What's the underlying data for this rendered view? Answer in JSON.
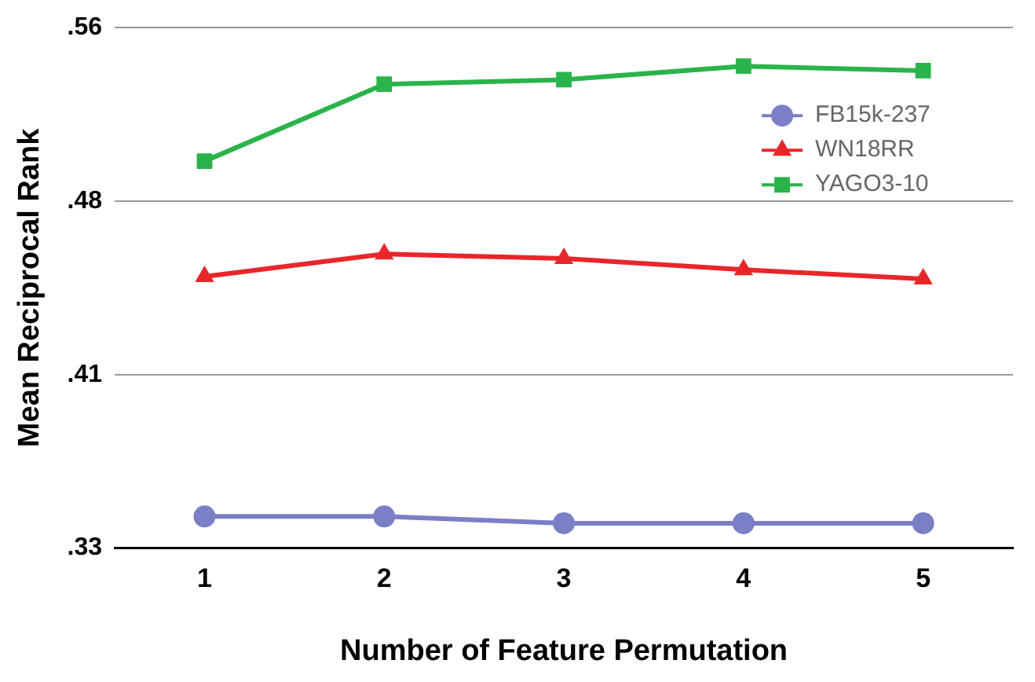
{
  "chart_data": {
    "type": "line",
    "xlabel": "Number of Feature Permutation",
    "ylabel": "Mean Reciprocal Rank",
    "categories": [
      "1",
      "2",
      "3",
      "4",
      "5"
    ],
    "series": [
      {
        "name": "FB15k-237",
        "color": "#7b7fc6",
        "marker": "circle",
        "values": [
          0.344,
          0.344,
          0.341,
          0.341,
          0.341
        ]
      },
      {
        "name": "WN18RR",
        "color": "#e8262a",
        "marker": "triangle",
        "values": [
          0.45,
          0.46,
          0.458,
          0.453,
          0.449
        ]
      },
      {
        "name": "YAGO3-10",
        "color": "#2ab34a",
        "marker": "square",
        "values": [
          0.501,
          0.535,
          0.537,
          0.543,
          0.541
        ]
      }
    ],
    "ylim": [
      0.33,
      0.56
    ],
    "yticks": [
      {
        "value": 0.33,
        "label": ".33"
      },
      {
        "value": 0.40667,
        "label": ".41"
      },
      {
        "value": 0.48333,
        "label": ".48"
      },
      {
        "value": 0.56,
        "label": ".56"
      }
    ],
    "grid": "y",
    "legend": "top right",
    "line_style": "solid"
  }
}
